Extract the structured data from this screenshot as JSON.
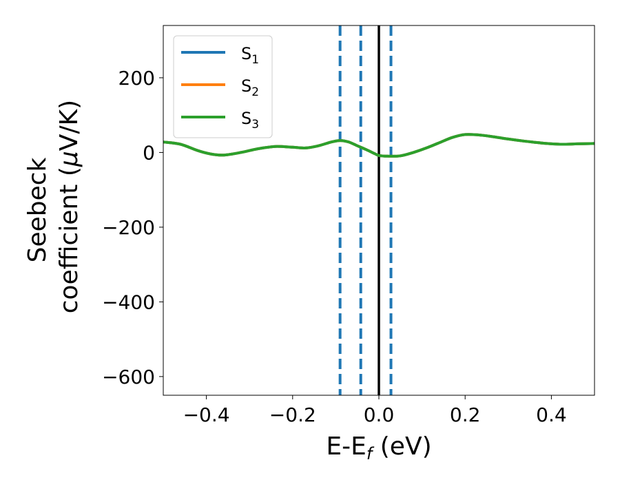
{
  "chart_data": {
    "type": "line",
    "xlabel": "E-E_f (eV)",
    "xlabel_main": "E-E",
    "xlabel_sub": "f",
    "xlabel_tail": " (eV)",
    "ylabel_line1": "Seebeck",
    "ylabel_line2_prefix": "coefficient  (",
    "ylabel_mu": "μ",
    "ylabel_line2_suffix": "V/K)",
    "xlim": [
      -0.5,
      0.5
    ],
    "ylim": [
      -650,
      340
    ],
    "xticks": [
      -0.4,
      -0.2,
      0.0,
      0.2,
      0.4
    ],
    "xtick_labels": [
      "−0.4",
      "−0.2",
      "0.0",
      "0.2",
      "0.4"
    ],
    "yticks": [
      200,
      0,
      -200,
      -400,
      -600
    ],
    "ytick_labels": [
      "200",
      "0",
      "−200",
      "−400",
      "−600"
    ],
    "grid": false,
    "legend_placement": "top-left",
    "series": [
      {
        "name": "S1",
        "label_main": "S",
        "label_sub": "1",
        "color": "#1f77b4",
        "x": [
          -0.5,
          -0.46,
          -0.42,
          -0.39,
          -0.36,
          -0.32,
          -0.28,
          -0.24,
          -0.2,
          -0.17,
          -0.14,
          -0.11,
          -0.09,
          -0.07,
          -0.05,
          -0.03,
          -0.01,
          0.0,
          0.02,
          0.05,
          0.08,
          0.11,
          0.14,
          0.17,
          0.2,
          0.23,
          0.26,
          0.3,
          0.34,
          0.38,
          0.42,
          0.46,
          0.5
        ],
        "y": [
          28,
          22,
          5,
          -4,
          -7,
          0,
          10,
          16,
          14,
          12,
          18,
          28,
          32,
          28,
          18,
          8,
          -3,
          -8,
          -10,
          -9,
          0,
          12,
          26,
          40,
          48,
          47,
          43,
          36,
          30,
          25,
          22,
          23,
          24
        ]
      },
      {
        "name": "S2",
        "label_main": "S",
        "label_sub": "2",
        "color": "#ff7f0e",
        "x": [
          -0.5,
          -0.46,
          -0.42,
          -0.39,
          -0.36,
          -0.32,
          -0.28,
          -0.24,
          -0.2,
          -0.17,
          -0.14,
          -0.11,
          -0.09,
          -0.07,
          -0.05,
          -0.03,
          -0.01,
          0.0,
          0.02,
          0.05,
          0.08,
          0.11,
          0.14,
          0.17,
          0.2,
          0.23,
          0.26,
          0.3,
          0.34,
          0.38,
          0.42,
          0.46,
          0.5
        ],
        "y": [
          28,
          22,
          5,
          -4,
          -7,
          0,
          10,
          16,
          14,
          12,
          18,
          28,
          32,
          28,
          18,
          8,
          -3,
          -8,
          -10,
          -9,
          0,
          12,
          26,
          40,
          48,
          47,
          43,
          36,
          30,
          25,
          22,
          23,
          24
        ]
      },
      {
        "name": "S3",
        "label_main": "S",
        "label_sub": "3",
        "color": "#2ca02c",
        "x": [
          -0.5,
          -0.46,
          -0.42,
          -0.39,
          -0.36,
          -0.32,
          -0.28,
          -0.24,
          -0.2,
          -0.17,
          -0.14,
          -0.11,
          -0.09,
          -0.07,
          -0.05,
          -0.03,
          -0.01,
          0.0,
          0.02,
          0.05,
          0.08,
          0.11,
          0.14,
          0.17,
          0.2,
          0.23,
          0.26,
          0.3,
          0.34,
          0.38,
          0.42,
          0.46,
          0.5
        ],
        "y": [
          28,
          22,
          5,
          -4,
          -7,
          0,
          10,
          16,
          14,
          12,
          18,
          28,
          32,
          28,
          18,
          8,
          -3,
          -8,
          -10,
          -9,
          0,
          12,
          26,
          40,
          48,
          47,
          43,
          36,
          30,
          25,
          22,
          23,
          24
        ]
      }
    ],
    "vertical_lines": [
      {
        "x": -0.09,
        "style": "dashed",
        "color": "#1f77b4"
      },
      {
        "x": -0.042,
        "style": "dashed",
        "color": "#1f77b4"
      },
      {
        "x": 0.0,
        "style": "solid",
        "color": "#000000"
      },
      {
        "x": 0.028,
        "style": "dashed",
        "color": "#1f77b4"
      }
    ]
  }
}
